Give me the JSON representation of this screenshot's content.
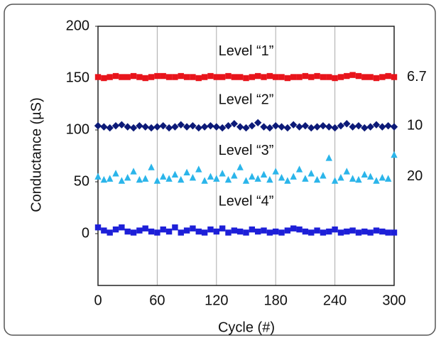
{
  "chart_data": {
    "type": "scatter",
    "xlabel": "Cycle (#)",
    "ylabel": "Conductance (µS)",
    "xlim": [
      0,
      300
    ],
    "xticks": [
      0,
      60,
      120,
      180,
      240,
      300
    ],
    "ylim": [
      -50,
      200
    ],
    "yticks": [
      0,
      50,
      100,
      150,
      200
    ],
    "grid": "x",
    "x": [
      0,
      6,
      12,
      18,
      24,
      30,
      36,
      42,
      48,
      54,
      60,
      66,
      72,
      78,
      84,
      90,
      96,
      102,
      108,
      114,
      120,
      126,
      132,
      138,
      144,
      150,
      156,
      162,
      168,
      174,
      180,
      186,
      192,
      198,
      204,
      210,
      216,
      222,
      228,
      234,
      240,
      246,
      252,
      258,
      264,
      270,
      276,
      282,
      288,
      294,
      300
    ],
    "series": [
      {
        "name": "Level “1”",
        "color": "#e8141b",
        "marker": "square",
        "right_label": "6.7",
        "values": [
          151,
          150,
          151,
          152,
          151,
          151,
          152,
          151,
          150,
          151,
          152,
          152,
          151,
          151,
          152,
          151,
          151,
          150,
          151,
          152,
          151,
          151,
          152,
          151,
          151,
          150,
          151,
          152,
          151,
          152,
          151,
          151,
          150,
          151,
          151,
          152,
          151,
          152,
          151,
          151,
          150,
          151,
          152,
          153,
          152,
          151,
          151,
          150,
          151,
          152,
          151
        ]
      },
      {
        "name": "Level “2”",
        "color": "#0c1a78",
        "marker": "diamond",
        "right_label": "10",
        "values": [
          104,
          103,
          102,
          104,
          105,
          103,
          102,
          104,
          103,
          102,
          103,
          104,
          102,
          103,
          105,
          103,
          104,
          102,
          103,
          104,
          103,
          102,
          104,
          106,
          103,
          102,
          104,
          107,
          103,
          102,
          104,
          103,
          102,
          105,
          103,
          104,
          102,
          103,
          104,
          103,
          102,
          104,
          106,
          103,
          104,
          102,
          103,
          105,
          103,
          104,
          103
        ]
      },
      {
        "name": "Level “3”",
        "color": "#2bb5ea",
        "marker": "triangle",
        "right_label": "20",
        "values": [
          55,
          52,
          53,
          58,
          51,
          54,
          60,
          52,
          53,
          64,
          51,
          55,
          53,
          57,
          52,
          59,
          54,
          62,
          51,
          55,
          53,
          58,
          52,
          56,
          64,
          51,
          55,
          53,
          57,
          52,
          60,
          54,
          51,
          55,
          62,
          53,
          58,
          52,
          56,
          73,
          51,
          54,
          60,
          53,
          52,
          57,
          55,
          51,
          54,
          53,
          76
        ]
      },
      {
        "name": "Level “4”",
        "color": "#1d1fd8",
        "marker": "square",
        "values": [
          6,
          3,
          1,
          4,
          6,
          2,
          1,
          3,
          5,
          2,
          1,
          4,
          2,
          6,
          1,
          3,
          5,
          2,
          1,
          4,
          2,
          5,
          1,
          3,
          2,
          1,
          4,
          2,
          3,
          1,
          2,
          1,
          3,
          5,
          4,
          2,
          1,
          3,
          1,
          2,
          4,
          1,
          2,
          3,
          1,
          2,
          1,
          3,
          2,
          1,
          1
        ]
      }
    ]
  }
}
